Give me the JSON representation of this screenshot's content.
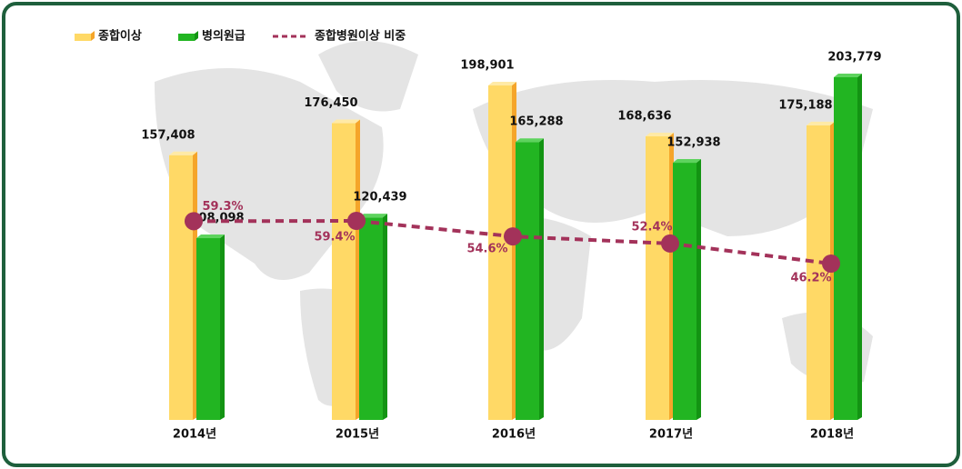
{
  "chart_data": {
    "type": "bar",
    "categories": [
      "2014년",
      "2015년",
      "2016년",
      "2017년",
      "2018년"
    ],
    "series": [
      {
        "name": "종합이상",
        "color": "#ffd966",
        "values": [
          157408,
          176450,
          198901,
          168636,
          175188
        ],
        "value_labels": [
          "157,408",
          "176,450",
          "198,901",
          "168,636",
          "175,188"
        ]
      },
      {
        "name": "병의원급",
        "color": "#22b522",
        "values": [
          108098,
          120439,
          165288,
          152938,
          203779
        ],
        "value_labels": [
          "108,098",
          "120,439",
          "165,288",
          "152,938",
          "203,779"
        ]
      },
      {
        "name": "종합병원이상 비중",
        "type": "line",
        "axis": "y2",
        "color": "#a3325a",
        "values": [
          59.3,
          59.4,
          54.6,
          52.4,
          46.2
        ],
        "value_labels": [
          "59.3%",
          "59.4%",
          "54.6%",
          "52.4%",
          "46.2%"
        ]
      }
    ],
    "legend": "top-left"
  }
}
